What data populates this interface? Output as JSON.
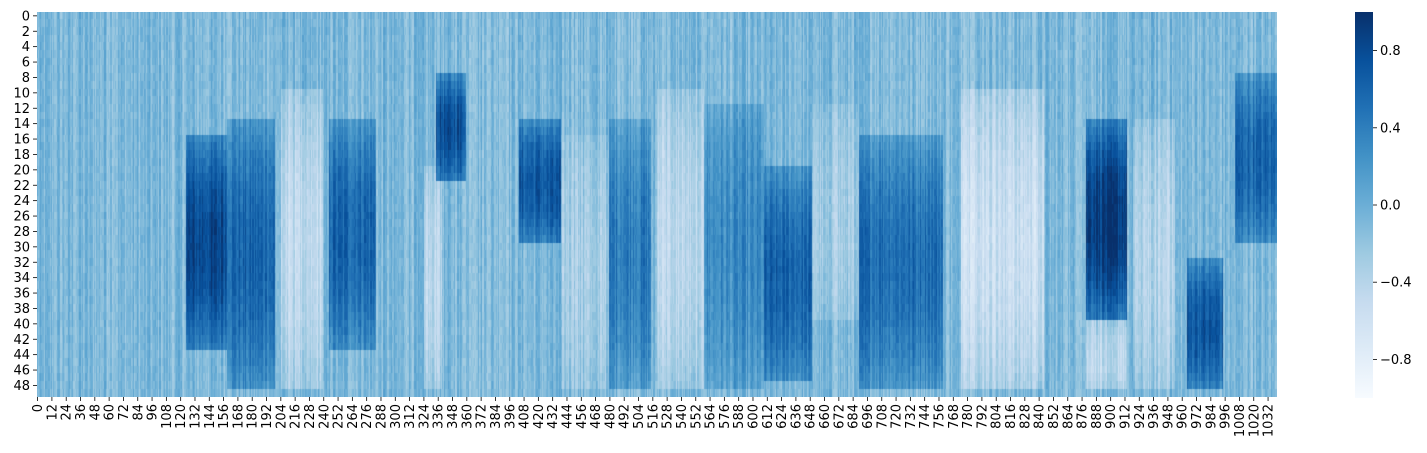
{
  "chart_data": {
    "type": "heatmap",
    "title": "",
    "xlabel": "",
    "ylabel": "",
    "rows": 50,
    "columns": 1040,
    "y_tick_labels": [
      "0",
      "2",
      "4",
      "6",
      "8",
      "10",
      "12",
      "14",
      "16",
      "18",
      "20",
      "22",
      "24",
      "26",
      "28",
      "30",
      "32",
      "34",
      "36",
      "38",
      "40",
      "42",
      "44",
      "46",
      "48"
    ],
    "x_tick_labels": [
      "0",
      "12",
      "24",
      "36",
      "48",
      "60",
      "72",
      "84",
      "96",
      "108",
      "120",
      "132",
      "144",
      "156",
      "168",
      "180",
      "192",
      "204",
      "216",
      "228",
      "240",
      "252",
      "264",
      "276",
      "288",
      "300",
      "312",
      "324",
      "336",
      "348",
      "360",
      "372",
      "384",
      "396",
      "408",
      "420",
      "432",
      "444",
      "456",
      "468",
      "480",
      "492",
      "504",
      "516",
      "528",
      "540",
      "552",
      "564",
      "576",
      "588",
      "600",
      "612",
      "624",
      "636",
      "648",
      "660",
      "672",
      "684",
      "696",
      "708",
      "720",
      "732",
      "744",
      "756",
      "768",
      "780",
      "792",
      "804",
      "816",
      "828",
      "840",
      "852",
      "864",
      "876",
      "888",
      "900",
      "912",
      "924",
      "936",
      "948",
      "960",
      "972",
      "984",
      "996",
      "1008",
      "1020",
      "1032"
    ],
    "colorbar": {
      "colormap": "Blues",
      "vmin": -1.0,
      "vmax": 1.0,
      "tick_values": [
        0.8,
        0.4,
        0.0,
        -0.4,
        -0.8
      ],
      "tick_labels": [
        "0.8",
        "0.4",
        "0.0",
        "−0.4",
        "−0.8"
      ]
    },
    "baseline_value": -0.1,
    "column_regions": [
      {
        "x_start": 125,
        "x_end": 160,
        "row_start": 16,
        "row_end": 44,
        "value": 0.82
      },
      {
        "x_start": 160,
        "x_end": 200,
        "row_start": 14,
        "row_end": 49,
        "value": 0.6
      },
      {
        "x_start": 205,
        "x_end": 240,
        "row_start": 10,
        "row_end": 49,
        "value": -0.5
      },
      {
        "x_start": 245,
        "x_end": 285,
        "row_start": 14,
        "row_end": 44,
        "value": 0.6
      },
      {
        "x_start": 325,
        "x_end": 340,
        "row_start": 20,
        "row_end": 49,
        "value": -0.45
      },
      {
        "x_start": 335,
        "x_end": 360,
        "row_start": 8,
        "row_end": 22,
        "value": 0.75
      },
      {
        "x_start": 405,
        "x_end": 440,
        "row_start": 14,
        "row_end": 30,
        "value": 0.68
      },
      {
        "x_start": 440,
        "x_end": 480,
        "row_start": 16,
        "row_end": 49,
        "value": -0.3
      },
      {
        "x_start": 480,
        "x_end": 515,
        "row_start": 14,
        "row_end": 49,
        "value": 0.45
      },
      {
        "x_start": 520,
        "x_end": 560,
        "row_start": 10,
        "row_end": 49,
        "value": -0.45
      },
      {
        "x_start": 560,
        "x_end": 610,
        "row_start": 12,
        "row_end": 49,
        "value": 0.3
      },
      {
        "x_start": 610,
        "x_end": 650,
        "row_start": 20,
        "row_end": 48,
        "value": 0.6
      },
      {
        "x_start": 650,
        "x_end": 690,
        "row_start": 12,
        "row_end": 40,
        "value": -0.3
      },
      {
        "x_start": 690,
        "x_end": 760,
        "row_start": 16,
        "row_end": 49,
        "value": 0.55
      },
      {
        "x_start": 775,
        "x_end": 845,
        "row_start": 10,
        "row_end": 49,
        "value": -0.55
      },
      {
        "x_start": 880,
        "x_end": 915,
        "row_start": 14,
        "row_end": 40,
        "value": 0.92
      },
      {
        "x_start": 880,
        "x_end": 915,
        "row_start": 40,
        "row_end": 49,
        "value": -0.45
      },
      {
        "x_start": 920,
        "x_end": 955,
        "row_start": 14,
        "row_end": 49,
        "value": -0.4
      },
      {
        "x_start": 965,
        "x_end": 995,
        "row_start": 32,
        "row_end": 49,
        "value": 0.7
      },
      {
        "x_start": 1005,
        "x_end": 1040,
        "row_start": 8,
        "row_end": 30,
        "value": 0.6
      }
    ]
  }
}
